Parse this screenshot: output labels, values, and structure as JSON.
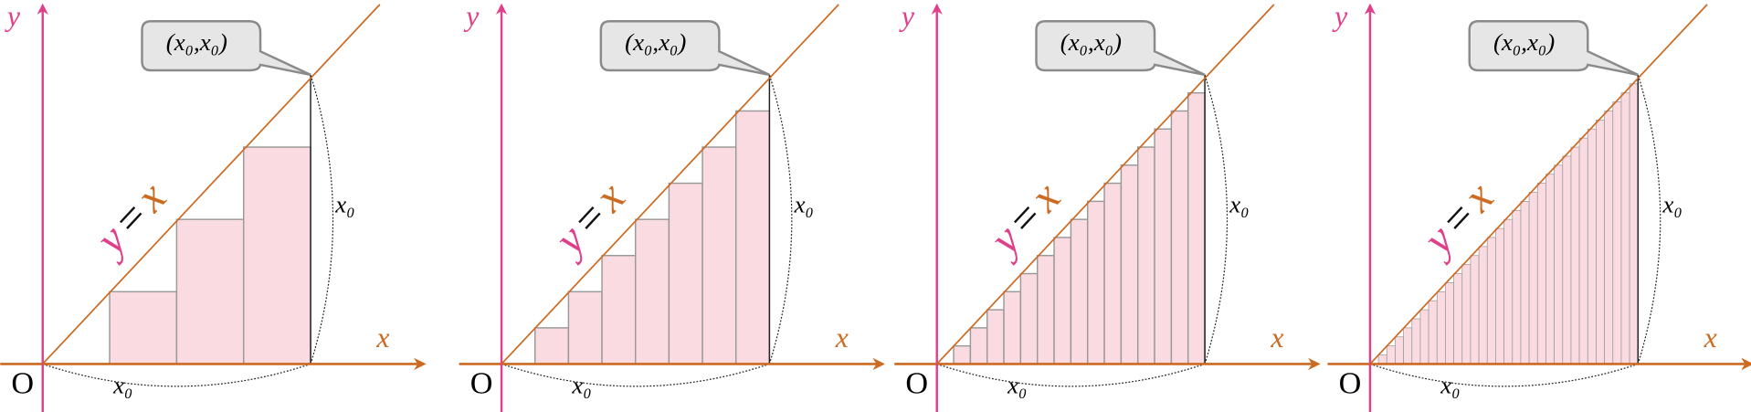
{
  "panels": [
    {
      "y_axis_label": "y",
      "x_axis_label": "x",
      "origin_label": "O",
      "point_label": "(x₀,x₀)",
      "height_label": "x₀",
      "width_label": "x₀",
      "line_label": {
        "left": "y",
        "eq": "=",
        "right": "x"
      }
    },
    {
      "y_axis_label": "y",
      "x_axis_label": "x",
      "origin_label": "O",
      "point_label": "(x₀,x₀)",
      "height_label": "x₀",
      "width_label": "x₀",
      "line_label": {
        "left": "y",
        "eq": "=",
        "right": "x"
      }
    },
    {
      "y_axis_label": "y",
      "x_axis_label": "x",
      "origin_label": "O",
      "point_label": "(x₀,x₀)",
      "height_label": "x₀",
      "width_label": "x₀",
      "line_label": {
        "left": "y",
        "eq": "=",
        "right": "x"
      }
    },
    {
      "y_axis_label": "y",
      "x_axis_label": "x",
      "origin_label": "O",
      "point_label": "(x₀,x₀)",
      "height_label": "x₀",
      "width_label": "x₀",
      "line_label": {
        "left": "y",
        "eq": "=",
        "right": "x"
      }
    }
  ]
}
